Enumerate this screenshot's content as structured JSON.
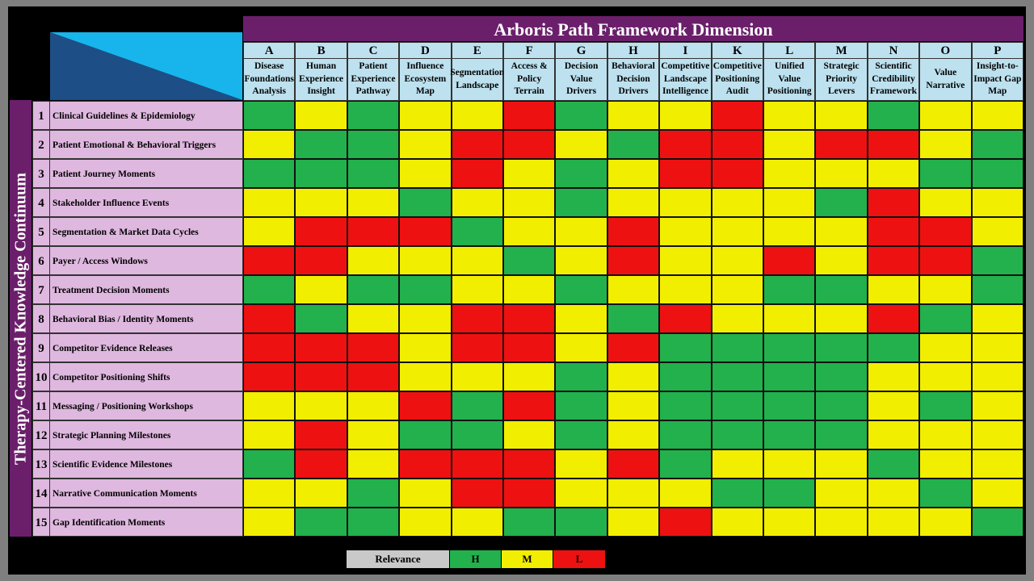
{
  "chart_data": {
    "type": "heatmap",
    "title": "Arboris Path Framework Dimension",
    "ylabel": "Therapy-Centered Knowledge Continuum",
    "columns": [
      {
        "letter": "A",
        "name": "Disease Foundations Analysis"
      },
      {
        "letter": "B",
        "name": "Human Experience Insight"
      },
      {
        "letter": "C",
        "name": "Patient Experience Pathway"
      },
      {
        "letter": "D",
        "name": "Influence Ecosystem Map"
      },
      {
        "letter": "E",
        "name": "Segmentation Landscape"
      },
      {
        "letter": "F",
        "name": "Access & Policy Terrain"
      },
      {
        "letter": "G",
        "name": "Decision Value Drivers"
      },
      {
        "letter": "H",
        "name": "Behavioral Decision Drivers"
      },
      {
        "letter": "I",
        "name": "Competitive Landscape Intelligence"
      },
      {
        "letter": "K",
        "name": "Competitive Positioning Audit"
      },
      {
        "letter": "L",
        "name": "Unified Value Positioning"
      },
      {
        "letter": "M",
        "name": "Strategic Priority Levers"
      },
      {
        "letter": "N",
        "name": "Scientific Credibility Framework"
      },
      {
        "letter": "O",
        "name": "Value Narrative"
      },
      {
        "letter": "P",
        "name": "Insight-to-Impact Gap Map"
      }
    ],
    "rows": [
      {
        "num": "1",
        "name": "Clinical Guidelines & Epidemiology",
        "values": [
          "H",
          "M",
          "H",
          "M",
          "M",
          "L",
          "H",
          "M",
          "M",
          "L",
          "M",
          "M",
          "H",
          "M",
          "M"
        ]
      },
      {
        "num": "2",
        "name": "Patient Emotional & Behavioral Triggers",
        "values": [
          "M",
          "H",
          "H",
          "M",
          "L",
          "L",
          "M",
          "H",
          "L",
          "L",
          "M",
          "L",
          "L",
          "M",
          "H"
        ]
      },
      {
        "num": "3",
        "name": "Patient Journey Moments",
        "values": [
          "H",
          "H",
          "H",
          "M",
          "L",
          "M",
          "H",
          "M",
          "L",
          "L",
          "M",
          "M",
          "M",
          "H",
          "H"
        ]
      },
      {
        "num": "4",
        "name": "Stakeholder Influence Events",
        "values": [
          "M",
          "M",
          "M",
          "H",
          "M",
          "M",
          "H",
          "M",
          "M",
          "M",
          "M",
          "H",
          "L",
          "M",
          "M"
        ]
      },
      {
        "num": "5",
        "name": "Segmentation & Market Data Cycles",
        "values": [
          "M",
          "L",
          "L",
          "L",
          "H",
          "M",
          "M",
          "L",
          "M",
          "M",
          "M",
          "M",
          "L",
          "L",
          "M"
        ]
      },
      {
        "num": "6",
        "name": "Payer / Access Windows",
        "values": [
          "L",
          "L",
          "M",
          "M",
          "M",
          "H",
          "M",
          "L",
          "M",
          "M",
          "L",
          "M",
          "L",
          "L",
          "H"
        ]
      },
      {
        "num": "7",
        "name": "Treatment Decision Moments",
        "values": [
          "H",
          "M",
          "H",
          "H",
          "M",
          "M",
          "H",
          "M",
          "M",
          "M",
          "H",
          "H",
          "M",
          "M",
          "H"
        ]
      },
      {
        "num": "8",
        "name": "Behavioral Bias / Identity Moments",
        "values": [
          "L",
          "H",
          "M",
          "M",
          "L",
          "L",
          "M",
          "H",
          "L",
          "M",
          "M",
          "M",
          "L",
          "H",
          "M"
        ]
      },
      {
        "num": "9",
        "name": "Competitor Evidence Releases",
        "values": [
          "L",
          "L",
          "L",
          "M",
          "L",
          "L",
          "M",
          "L",
          "H",
          "H",
          "H",
          "H",
          "H",
          "M",
          "M"
        ]
      },
      {
        "num": "10",
        "name": "Competitor Positioning Shifts",
        "values": [
          "L",
          "L",
          "L",
          "M",
          "M",
          "M",
          "H",
          "M",
          "H",
          "H",
          "H",
          "H",
          "M",
          "M",
          "M"
        ]
      },
      {
        "num": "11",
        "name": "Messaging / Positioning Workshops",
        "values": [
          "M",
          "M",
          "M",
          "L",
          "H",
          "L",
          "H",
          "M",
          "H",
          "H",
          "H",
          "H",
          "M",
          "H",
          "M"
        ]
      },
      {
        "num": "12",
        "name": "Strategic Planning Milestones",
        "values": [
          "M",
          "L",
          "M",
          "H",
          "H",
          "M",
          "H",
          "M",
          "H",
          "H",
          "H",
          "H",
          "M",
          "M",
          "M"
        ]
      },
      {
        "num": "13",
        "name": "Scientific Evidence Milestones",
        "values": [
          "H",
          "L",
          "M",
          "L",
          "L",
          "L",
          "M",
          "L",
          "H",
          "M",
          "M",
          "M",
          "H",
          "M",
          "M"
        ]
      },
      {
        "num": "14",
        "name": "Narrative Communication Moments",
        "values": [
          "M",
          "M",
          "H",
          "M",
          "L",
          "L",
          "M",
          "M",
          "M",
          "H",
          "H",
          "M",
          "M",
          "H",
          "M"
        ]
      },
      {
        "num": "15",
        "name": "Gap Identification Moments",
        "values": [
          "M",
          "H",
          "H",
          "M",
          "M",
          "H",
          "H",
          "M",
          "L",
          "M",
          "M",
          "M",
          "M",
          "M",
          "H"
        ]
      }
    ],
    "legend": {
      "title": "Relevance",
      "levels": [
        {
          "key": "H",
          "label": "H"
        },
        {
          "key": "M",
          "label": "M"
        },
        {
          "key": "L",
          "label": "L"
        }
      ]
    },
    "colors": {
      "H": "#22b14c",
      "M": "#f2ee00",
      "L": "#ee1111"
    }
  }
}
